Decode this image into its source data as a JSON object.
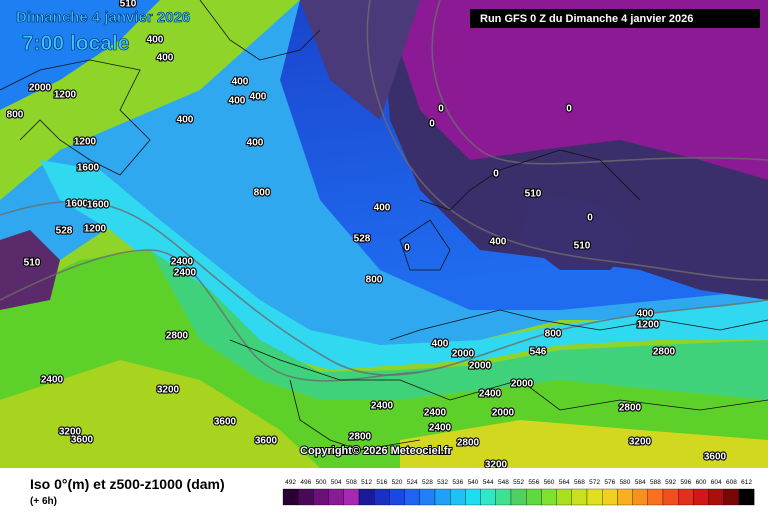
{
  "header": {
    "title": "Dimanche 4 janvier 2026",
    "time": "7:00 locale",
    "run": "Run GFS 0 Z du Dimanche 4 janvier 2026"
  },
  "map": {
    "labels": [
      "510",
      "400",
      "400",
      "400",
      "400",
      "400",
      "400",
      "400",
      "400",
      "400",
      "400",
      "400",
      "800",
      "800",
      "800",
      "800",
      "1200",
      "1200",
      "1200",
      "1200",
      "1600",
      "1600",
      "1600",
      "2000",
      "2000",
      "2000",
      "2000",
      "2000",
      "2400",
      "2400",
      "2400",
      "2400",
      "2400",
      "2400",
      "2400",
      "2800",
      "2800",
      "2800",
      "2800",
      "2800",
      "3200",
      "3200",
      "3200",
      "3200",
      "3600",
      "3600",
      "3600",
      "3600",
      "0",
      "0",
      "0",
      "0",
      "0",
      "0",
      "510",
      "510",
      "510",
      "528",
      "528",
      "546"
    ]
  },
  "copyright": "Copyright© 2026 Meteociel.fr",
  "legend": {
    "title": "Iso 0°(m) et z500-z1000 (dam)",
    "step": "(+ 6h)",
    "scale": [
      492,
      496,
      500,
      504,
      508,
      512,
      516,
      520,
      524,
      528,
      532,
      536,
      540,
      544,
      548,
      552,
      556,
      560,
      564,
      568,
      572,
      576,
      580,
      584,
      588,
      592,
      596,
      600,
      604,
      608,
      612
    ]
  }
}
